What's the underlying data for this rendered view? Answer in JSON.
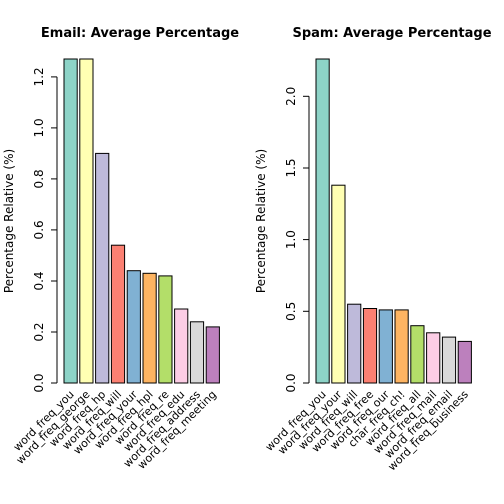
{
  "chart_data": [
    {
      "type": "bar",
      "title": "Email: Average Percentage",
      "xlabel": "",
      "ylabel": "Percentage Relative (%)",
      "ylim": [
        0,
        1.27
      ],
      "yticks": [
        0.0,
        0.2,
        0.4,
        0.6,
        0.8,
        1.0,
        1.2
      ],
      "ytick_labels": [
        "0.0",
        "0.2",
        "0.4",
        "0.6",
        "0.8",
        "1.0",
        "1.2"
      ],
      "grid": false,
      "categories": [
        "word_freq_you",
        "word_freq_george",
        "word_freq_hp",
        "word_freq_will",
        "word_freq_your",
        "word_freq_hpl",
        "word_freq_re",
        "word_freq_edu",
        "word_freq_address",
        "word_freq_meeting"
      ],
      "values": [
        1.27,
        1.27,
        0.9,
        0.54,
        0.44,
        0.43,
        0.42,
        0.29,
        0.24,
        0.22
      ],
      "colors": [
        "#8DD3C7",
        "#FFFFB3",
        "#BEBADA",
        "#FB8072",
        "#80B1D3",
        "#FDB462",
        "#B3DE69",
        "#FCCDE5",
        "#D9D9D9",
        "#BC80BD"
      ]
    },
    {
      "type": "bar",
      "title": "Spam: Average Percentage",
      "xlabel": "",
      "ylabel": "Percentage Relative (%)",
      "ylim": [
        0,
        2.26
      ],
      "yticks": [
        0.0,
        0.5,
        1.0,
        1.5,
        2.0
      ],
      "ytick_labels": [
        "0.0",
        "0.5",
        "1.0",
        "1.5",
        "2.0"
      ],
      "grid": false,
      "categories": [
        "word_freq_you",
        "word_freq_your",
        "word_freq_will",
        "word_freq_free",
        "word_freq_our",
        "char_freq_ch!",
        "word_freq_all",
        "word_freq_mail",
        "word_freq_email",
        "word_freq_business"
      ],
      "values": [
        2.26,
        1.38,
        0.55,
        0.52,
        0.51,
        0.51,
        0.4,
        0.35,
        0.32,
        0.29
      ],
      "colors": [
        "#8DD3C7",
        "#FFFFB3",
        "#BEBADA",
        "#FB8072",
        "#80B1D3",
        "#FDB462",
        "#B3DE69",
        "#FCCDE5",
        "#D9D9D9",
        "#BC80BD"
      ]
    }
  ]
}
